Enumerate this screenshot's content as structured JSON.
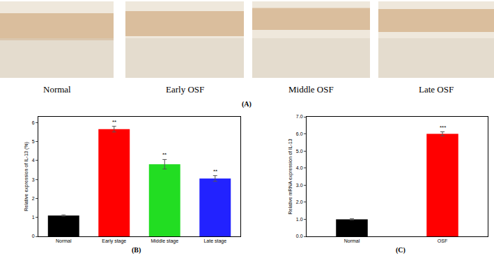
{
  "panel_a": {
    "label": "(A)",
    "images": [
      "Normal",
      "Early OSF",
      "Middle OSF",
      "Late OSF"
    ]
  },
  "chart_data": [
    {
      "type": "bar",
      "title": "(B)",
      "y_label": "Relative expression of IL-13 (%)",
      "categories": [
        "Normal",
        "Early stage",
        "Middle stage",
        "Late stage"
      ],
      "values": [
        1.1,
        5.65,
        3.8,
        3.05
      ],
      "error": [
        0.03,
        0.15,
        0.25,
        0.15
      ],
      "colors": [
        "#000000",
        "#ff0000",
        "#22dd22",
        "#2222ff"
      ],
      "significance": [
        null,
        "**",
        "**",
        "**"
      ],
      "ylim": [
        0,
        6.3
      ],
      "yticks": [
        0,
        1,
        2,
        3,
        4,
        5,
        6
      ],
      "grid": false
    },
    {
      "type": "bar",
      "title": "(C)",
      "y_label": "Relative mRNA expression of IL-13",
      "categories": [
        "Normal",
        "OSF"
      ],
      "values": [
        1.0,
        6.0
      ],
      "error": [
        0.03,
        0.12
      ],
      "colors": [
        "#000000",
        "#ff0000"
      ],
      "significance": [
        null,
        "***"
      ],
      "ylim": [
        0,
        7
      ],
      "yticks": [
        {
          "value": 0,
          "label": "0.0"
        },
        {
          "value": 1,
          "label": "1.0"
        },
        {
          "value": 2,
          "label": "2.0"
        },
        {
          "value": 3,
          "label": "3.0"
        },
        {
          "value": 4,
          "label": "4.0"
        },
        {
          "value": 5,
          "label": "5.0"
        },
        {
          "value": 6,
          "label": "6.0"
        },
        {
          "value": 7,
          "label": "7.0"
        }
      ],
      "grid": false
    }
  ]
}
